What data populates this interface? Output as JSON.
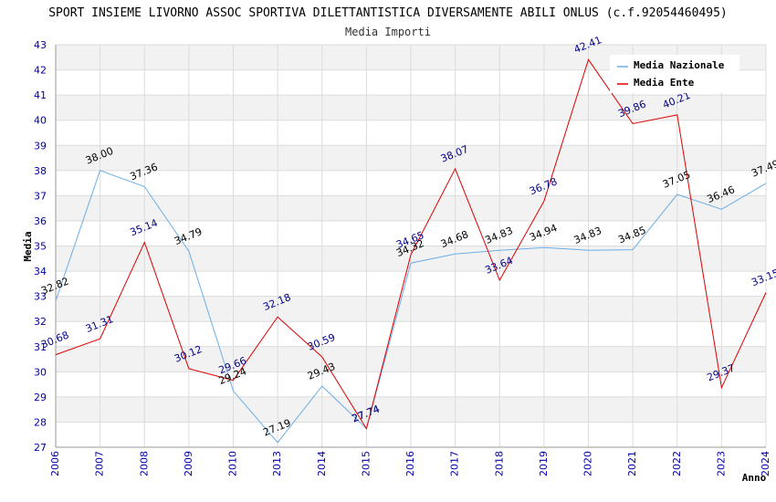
{
  "chart_data": {
    "type": "line",
    "title": "SPORT INSIEME LIVORNO ASSOC SPORTIVA DILETTANTISTICA DIVERSAMENTE ABILI ONLUS (c.f.92054460495)",
    "subtitle": "Media Importi",
    "xlabel": "Anno",
    "ylabel": "Media",
    "ylim": [
      27,
      43
    ],
    "yticks": [
      "27",
      "28",
      "29",
      "30",
      "31",
      "32",
      "33",
      "34",
      "35",
      "36",
      "37",
      "38",
      "39",
      "40",
      "41",
      "42",
      "43"
    ],
    "categories": [
      "2006",
      "2007",
      "2008",
      "2009",
      "2010",
      "2013",
      "2014",
      "2015",
      "2016",
      "2017",
      "2018",
      "2019",
      "2020",
      "2021",
      "2022",
      "2023",
      "2024"
    ],
    "legend_position": "top-right",
    "grid": true,
    "series": [
      {
        "name": "Media Nazionale",
        "color": "#6aaee6",
        "label_color": "#000000",
        "values": [
          32.82,
          38.0,
          37.36,
          34.79,
          29.24,
          27.19,
          29.43,
          27.74,
          34.32,
          34.68,
          34.83,
          34.94,
          34.83,
          34.85,
          37.05,
          36.46,
          37.49
        ],
        "labels": [
          "32.82",
          "38.00",
          "37.36",
          "34.79",
          "29.24",
          "27.19",
          "29.43",
          "27.74",
          "34.32",
          "34.68",
          "34.83",
          "34.94",
          "34.83",
          "34.85",
          "37.05",
          "36.46",
          "37.49"
        ]
      },
      {
        "name": "Media Ente",
        "color": "#dd0000",
        "label_color": "#000088",
        "values": [
          30.68,
          31.31,
          35.14,
          30.12,
          29.66,
          32.18,
          30.59,
          27.74,
          34.65,
          38.07,
          33.64,
          36.78,
          42.41,
          39.86,
          40.21,
          29.37,
          33.15
        ],
        "labels": [
          "30.68",
          "31.31",
          "35.14",
          "30.12",
          "29.66",
          "32.18",
          "30.59",
          "27.74",
          "34.65",
          "38.07",
          "33.64",
          "36.78",
          "42.41",
          "39.86",
          "40.21",
          "29.37",
          "33.15"
        ]
      }
    ]
  }
}
